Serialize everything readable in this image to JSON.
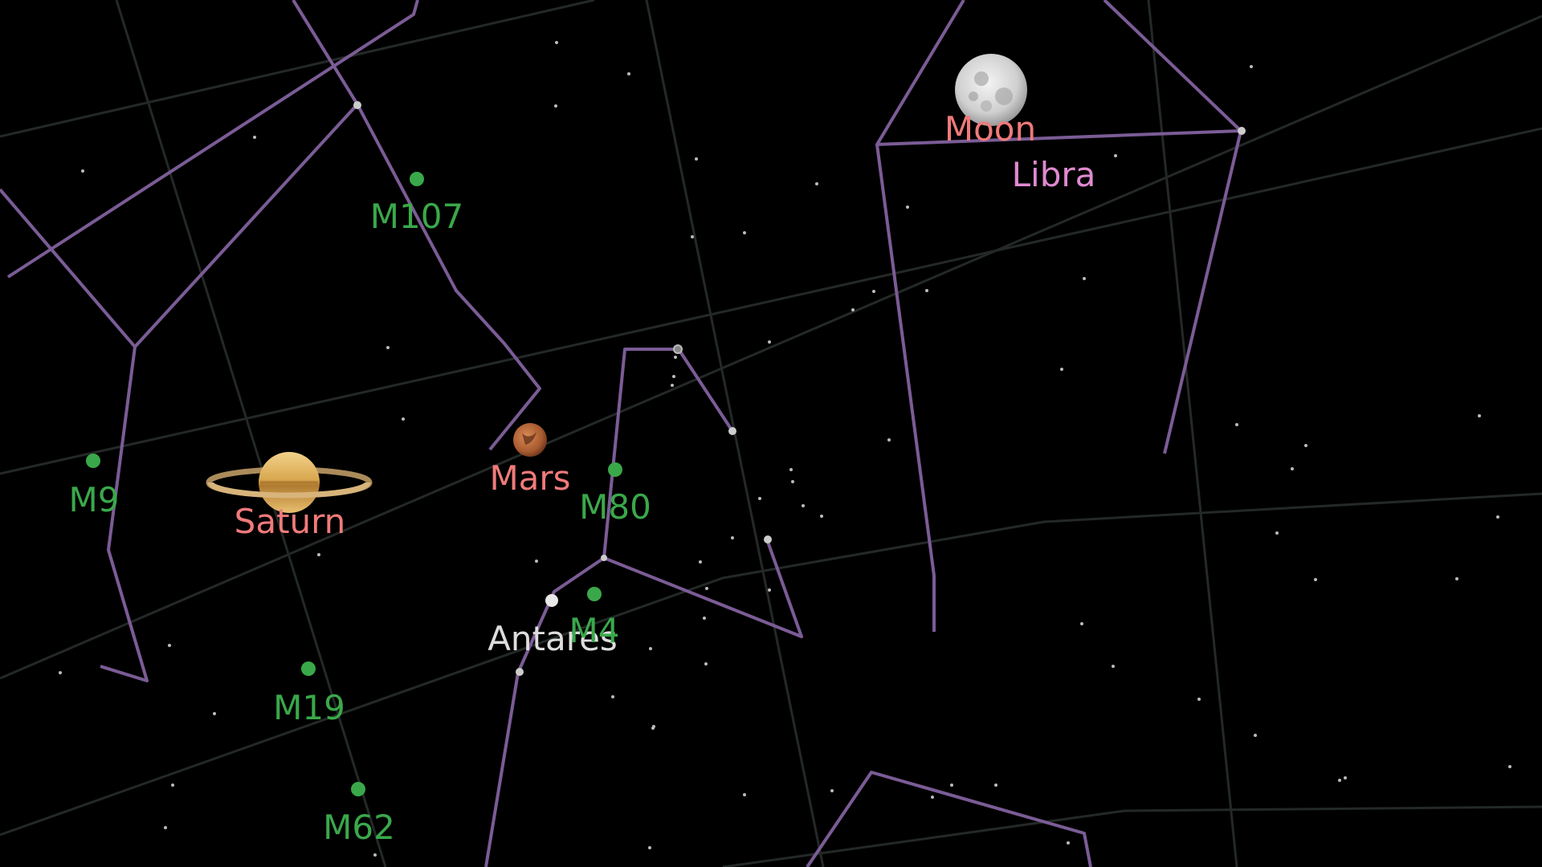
{
  "colors": {
    "background": "#000000",
    "constellation_line": "#7b5c96",
    "grid_line": "#222826",
    "messier": "#3aa84a",
    "planet_label": "#f07a7a",
    "constellation_label": "#e08ad0",
    "star_label": "#dddddd",
    "star": "#bbbbbb"
  },
  "labels": {
    "moon": "Moon",
    "libra": "Libra",
    "mars": "Mars",
    "saturn": "Saturn",
    "antares": "Antares",
    "m107": "M107",
    "m9": "M9",
    "m80": "M80",
    "m4": "M4",
    "m19": "M19",
    "m62": "M62"
  }
}
